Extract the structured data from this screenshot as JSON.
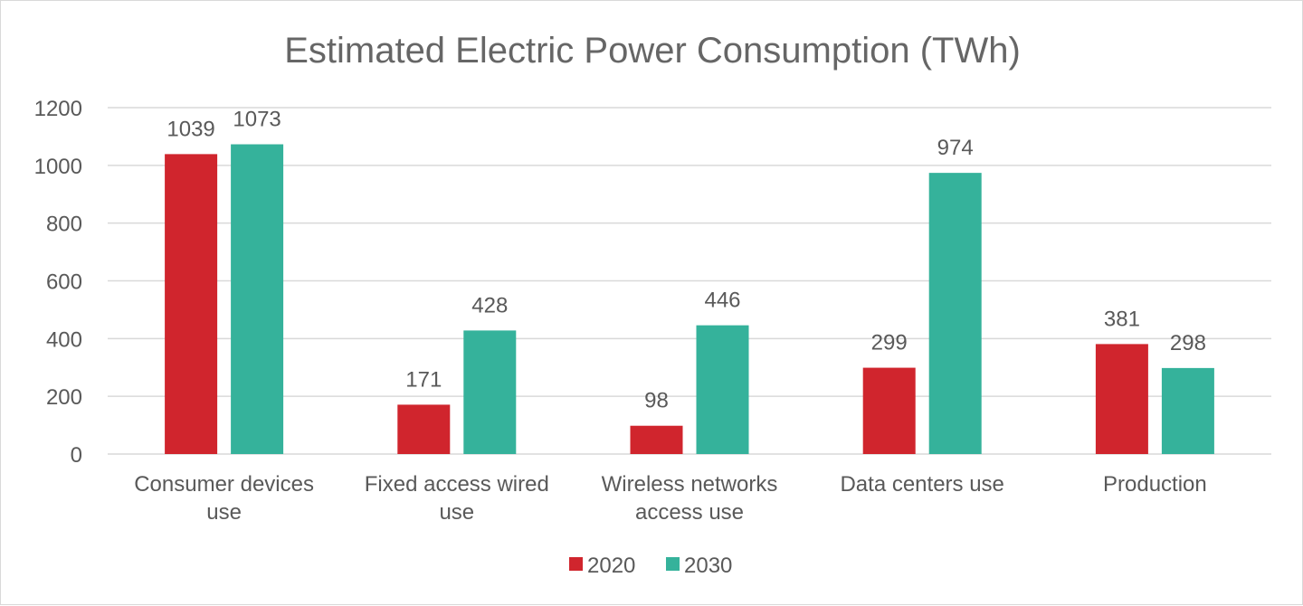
{
  "chart_data": {
    "type": "bar",
    "title": "Estimated Electric Power Consumption (TWh)",
    "xlabel": "",
    "ylabel": "",
    "ylim": [
      0,
      1200
    ],
    "yticks": [
      0,
      200,
      400,
      600,
      800,
      1000,
      1200
    ],
    "grid": true,
    "legend_position": "bottom",
    "categories": [
      [
        "Consumer devices",
        "use"
      ],
      [
        "Fixed access wired",
        "use"
      ],
      [
        "Wireless networks",
        "access use"
      ],
      [
        "Data centers use"
      ],
      [
        "Production"
      ]
    ],
    "series": [
      {
        "name": "2020",
        "color": "#d0252d",
        "values": [
          1039,
          171,
          98,
          299,
          381
        ]
      },
      {
        "name": "2030",
        "color": "#35b29b",
        "values": [
          1073,
          428,
          446,
          974,
          298
        ]
      }
    ]
  }
}
